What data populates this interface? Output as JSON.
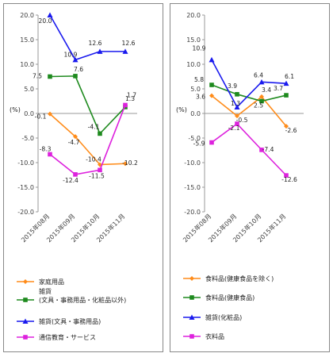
{
  "chart_data": [
    {
      "type": "line",
      "ylabel": "(%)",
      "ylim": [
        -20,
        20
      ],
      "yticks": [
        "20.0",
        "15.0",
        "10.0",
        "5.0",
        "0.0",
        "-5.0",
        "-10.0",
        "-15.0",
        "-20.0"
      ],
      "categories": [
        "2015年08月",
        "2015年09月",
        "2015年10月",
        "2015年11月"
      ],
      "legend_position": "bottom",
      "grid": false,
      "series": [
        {
          "name": "家庭用品",
          "color": "#ff8c1a",
          "marker": "diamond",
          "values": [
            -0.1,
            -4.7,
            -10.4,
            -10.2
          ],
          "labels": [
            "-0.1",
            "-4.7",
            "-10.4",
            "-10.2"
          ]
        },
        {
          "name": "雑貨\n(文具・事務用品・化粧品以外)",
          "color": "#1e8a1e",
          "marker": "square",
          "values": [
            7.5,
            7.6,
            -4.1,
            1.3
          ],
          "labels": [
            "7.5",
            "7.6",
            "-4.1",
            "1.3"
          ]
        },
        {
          "name": "雑貨(文具・事務用品)",
          "color": "#1a1aee",
          "marker": "triangle",
          "values": [
            20.0,
            10.9,
            12.6,
            12.6
          ],
          "labels": [
            "20.0",
            "10.9",
            "12.6",
            "12.6"
          ]
        },
        {
          "name": "通信教育・サービス",
          "color": "#dd22dd",
          "marker": "square",
          "values": [
            -8.3,
            -12.4,
            -11.5,
            1.7
          ],
          "labels": [
            "-8.3",
            "-12.4",
            "-11.5",
            "1.7"
          ]
        }
      ]
    },
    {
      "type": "line",
      "ylabel": "(%)",
      "ylim": [
        -20,
        20
      ],
      "yticks": [
        "20.0",
        "15.0",
        "10.0",
        "5.0",
        "0.0",
        "-5.0",
        "-10.0",
        "-15.0",
        "-20.0"
      ],
      "categories": [
        "2015年08月",
        "2015年09月",
        "2015年10月",
        "2015年11月"
      ],
      "legend_position": "bottom",
      "grid": false,
      "series": [
        {
          "name": "食料品(健康食品を除く)",
          "color": "#ff8c1a",
          "marker": "diamond",
          "values": [
            3.6,
            -0.5,
            3.4,
            -2.6
          ],
          "labels": [
            "3.6",
            "-0.5",
            "3.4",
            "-2.6"
          ]
        },
        {
          "name": "食料品(健康食品)",
          "color": "#1e8a1e",
          "marker": "square",
          "values": [
            5.8,
            3.9,
            2.5,
            3.7
          ],
          "labels": [
            "5.8",
            "3.9",
            "2.5",
            "3.7"
          ]
        },
        {
          "name": "雑貨(化粧品)",
          "color": "#1a1aee",
          "marker": "triangle",
          "values": [
            10.9,
            1.3,
            6.4,
            6.1
          ],
          "labels": [
            "10.9",
            "1.3",
            "6.4",
            "6.1"
          ]
        },
        {
          "name": "衣料品",
          "color": "#dd22dd",
          "marker": "square",
          "values": [
            -5.9,
            -2.1,
            -7.4,
            -12.6
          ],
          "labels": [
            "-5.9",
            "-2.1",
            "-7.4",
            "-12.6"
          ]
        }
      ]
    }
  ]
}
